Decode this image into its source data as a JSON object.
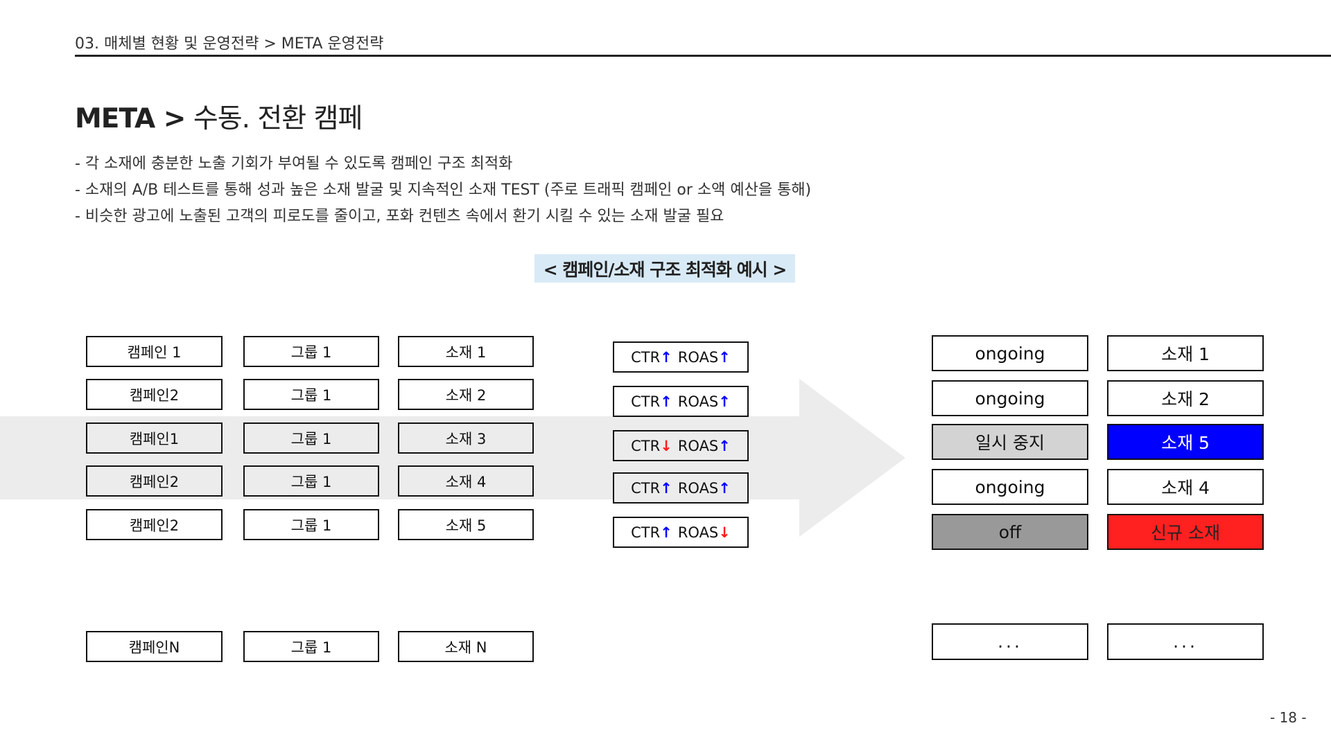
{
  "breadcrumb": "03. 매체별 현황 및 운영전략 > META 운영전략",
  "title": {
    "bold": "META >",
    "rest": "수동. 전환 캠페"
  },
  "bullets": [
    "- 각 소재에 충분한 노출 기회가 부여될 수 있도록 캠페인 구조 최적화",
    "- 소재의 A/B 테스트를 통해 성과 높은 소재 발굴 및 지속적인 소재 TEST (주로 트래픽 캠페인 or 소액 예산을 통해)",
    "- 비슷한 광고에 노출된 고객의 피로도를 줄이고, 포화 컨텐츠 속에서 환기 시킬 수 있는 소재 발굴 필요"
  ],
  "caption": "< 캠페인/소재 구조 최적화 예시 >",
  "rows": [
    {
      "campaign": "캠페인 1",
      "group": "그룹 1",
      "creative": "소재 1",
      "ctr": "up",
      "roas": "up",
      "status": "ongoing",
      "result": "소재 1"
    },
    {
      "campaign": "캠페인2",
      "group": "그룹 1",
      "creative": "소재 2",
      "ctr": "up",
      "roas": "up",
      "status": "ongoing",
      "result": "소재 2"
    },
    {
      "campaign": "캠페인1",
      "group": "그룹 1",
      "creative": "소재 3",
      "ctr": "down",
      "roas": "up",
      "status": "일시 중지",
      "result": "소재 5"
    },
    {
      "campaign": "캠페인2",
      "group": "그룹 1",
      "creative": "소재 4",
      "ctr": "up",
      "roas": "up",
      "status": "ongoing",
      "result": "소재 4"
    },
    {
      "campaign": "캠페인2",
      "group": "그룹 1",
      "creative": "소재 5",
      "ctr": "up",
      "roas": "down",
      "status": "off",
      "result": "신규 소재"
    }
  ],
  "last_row": {
    "campaign": "캠페인N",
    "group": "그룹 1",
    "creative": "소재 N",
    "status": "...",
    "result": "..."
  },
  "metric_labels": {
    "ctr": "CTR",
    "roas": "ROAS",
    "up": "↑",
    "down": "↓"
  },
  "colors": {
    "paused": "#d3d3d3",
    "off": "#999999",
    "new_creative_blue": "#0000ff",
    "new_creative_red": "#ff2020",
    "arrow": "#ececec",
    "caption_bg": "#d9eaf7"
  },
  "page_number": "- 18 -"
}
